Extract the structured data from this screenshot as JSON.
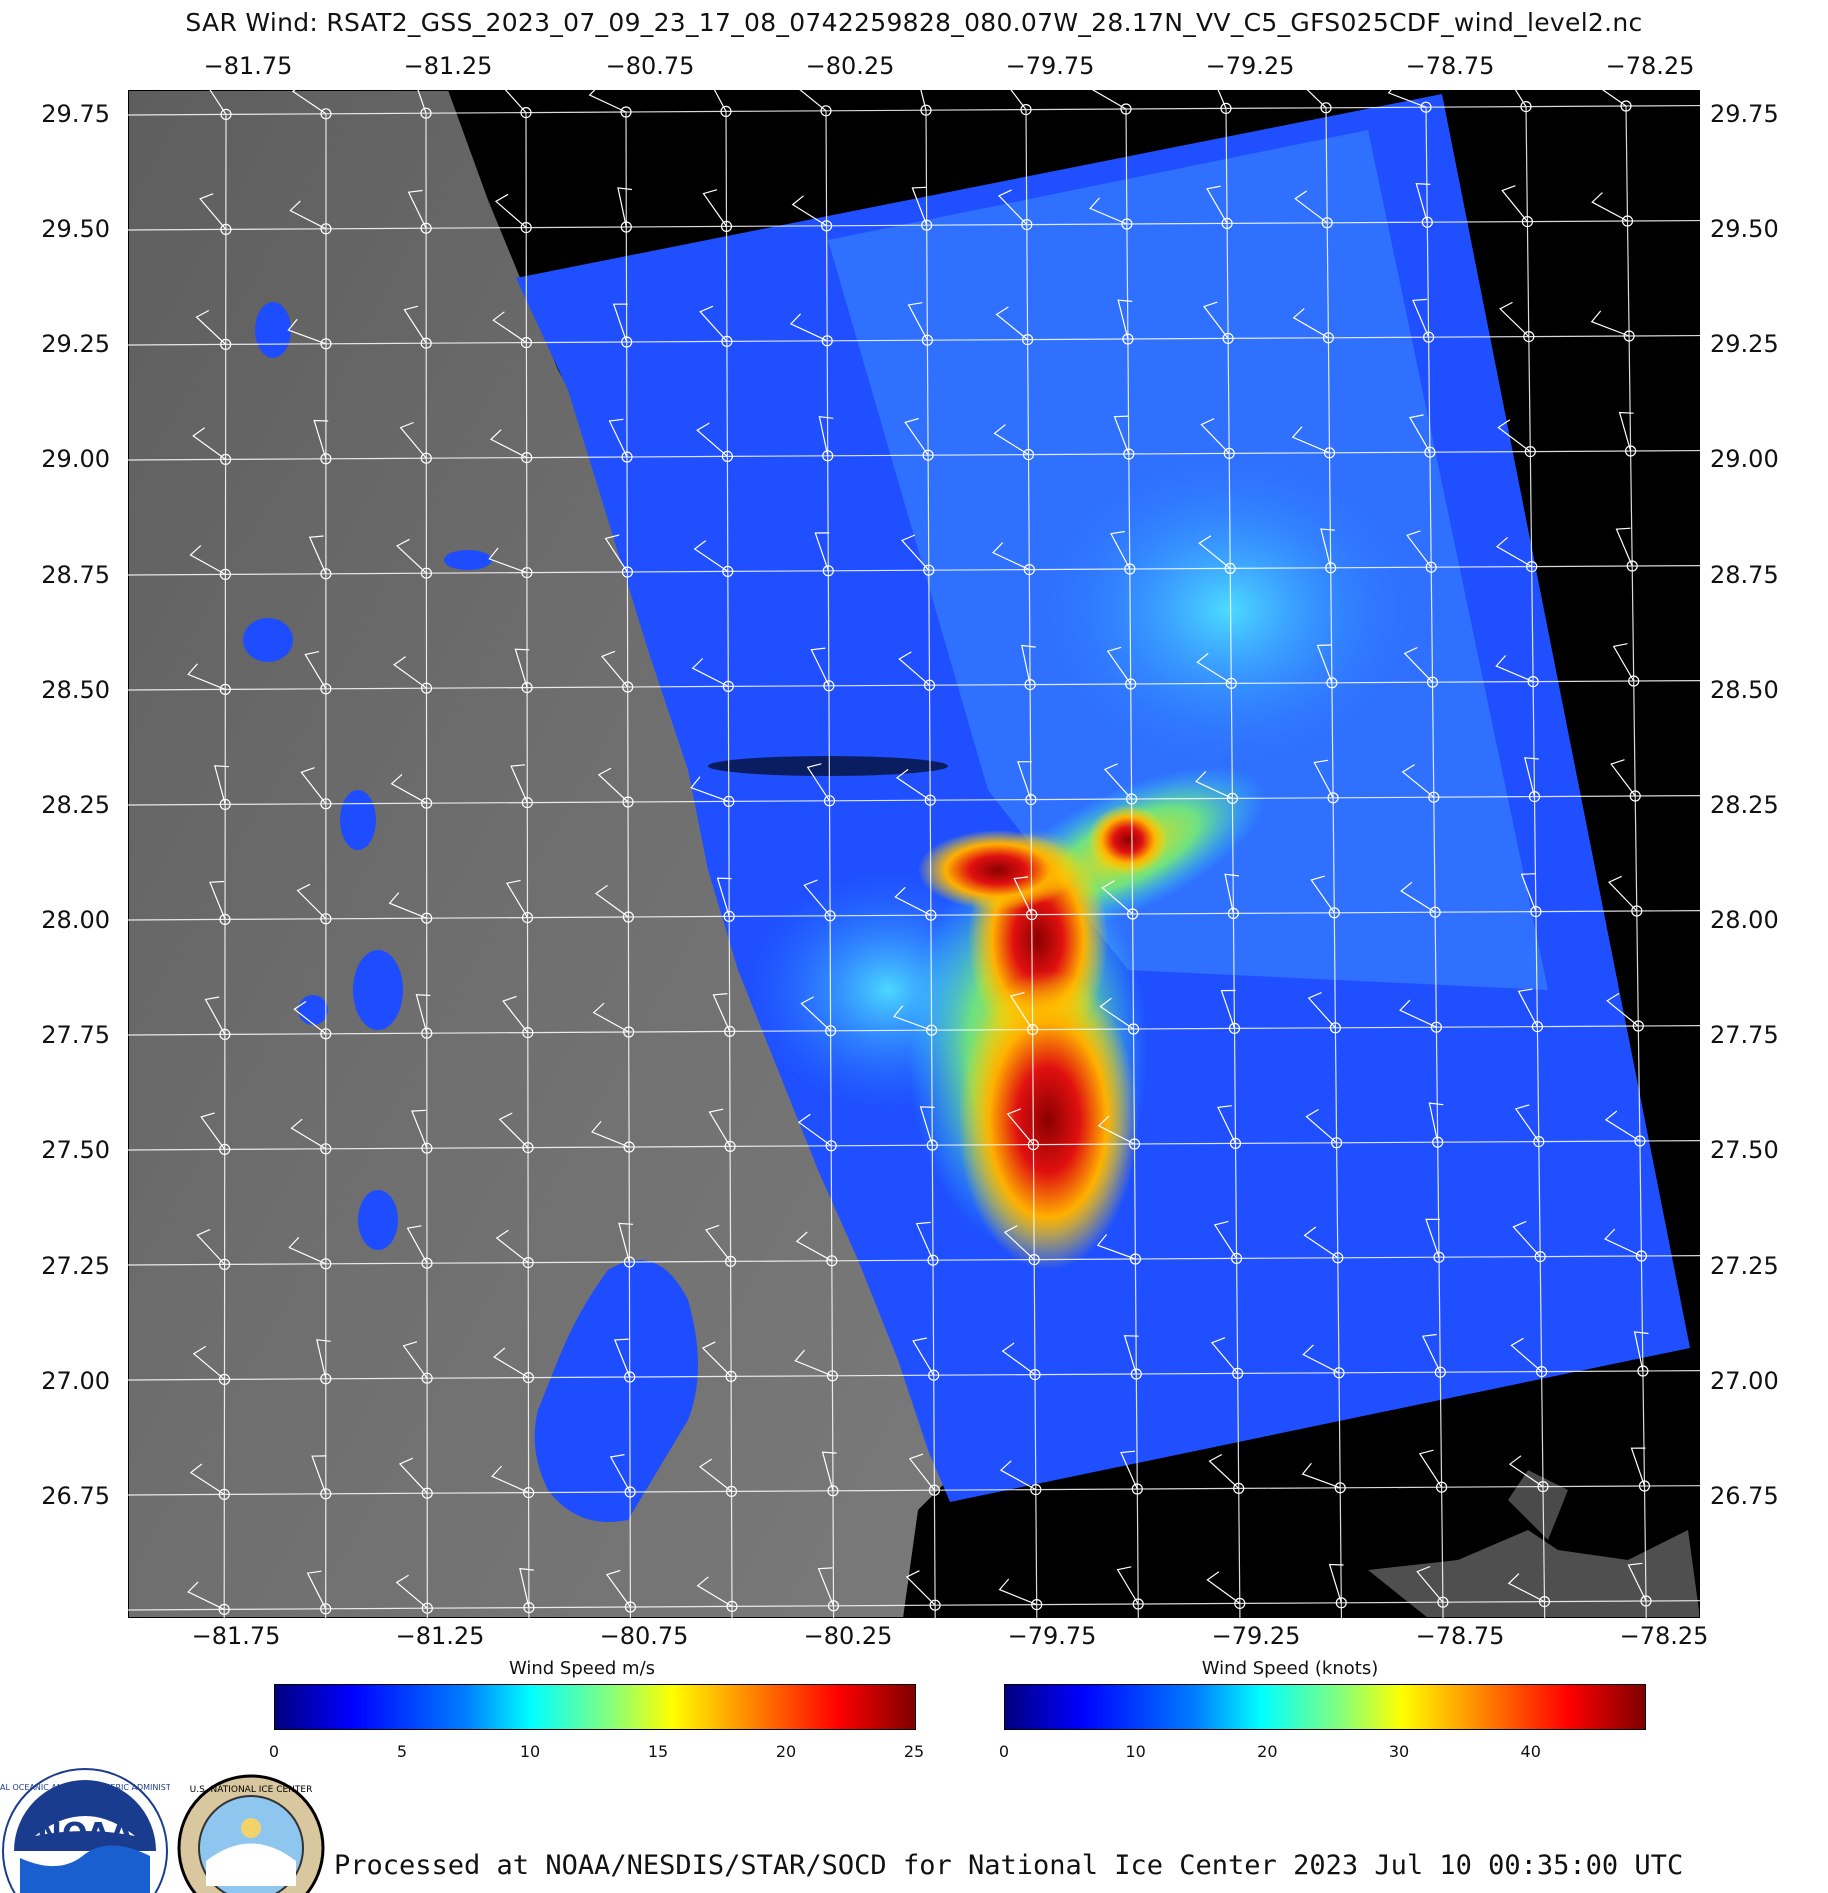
{
  "title": "SAR Wind: RSAT2_GSS_2023_07_09_23_17_08_0742259828_080.07W_28.17N_VV_C5_GFS025CDF_wind_level2.nc",
  "axes": {
    "lon_top": [
      "−81.75",
      "−81.25",
      "−80.75",
      "−80.25",
      "−79.75",
      "−79.25",
      "−78.75",
      "−78.25"
    ],
    "lon_bottom": [
      "−81.75",
      "−81.25",
      "−80.75",
      "−80.25",
      "−79.75",
      "−79.25",
      "−78.75",
      "−78.25"
    ],
    "lat_left": [
      "29.75",
      "29.50",
      "29.25",
      "29.00",
      "28.75",
      "28.50",
      "28.25",
      "28.00",
      "27.75",
      "27.50",
      "27.25",
      "27.00",
      "26.75"
    ],
    "lat_right": [
      "29.75",
      "29.50",
      "29.25",
      "29.00",
      "28.75",
      "28.50",
      "28.25",
      "28.00",
      "27.75",
      "27.50",
      "27.25",
      "27.00",
      "26.75"
    ]
  },
  "colorbar_ms": {
    "title": "Wind Speed m/s",
    "ticks": [
      "0",
      "5",
      "10",
      "15",
      "20",
      "25"
    ],
    "max": 25
  },
  "colorbar_knots": {
    "title": "Wind Speed (knots)",
    "ticks": [
      "0",
      "10",
      "20",
      "30",
      "40"
    ],
    "max": 48.6
  },
  "footer": "Processed at NOAA/NESDIS/STAR/SOCD for National Ice Center 2023 Jul 10 00:35:00 UTC",
  "logos": {
    "noaa_text": "NOAA",
    "noaa_ring": "NATIONAL OCEANIC AND ATMOSPHERIC ADMINISTRATION",
    "nic_ring": "U.S. NATIONAL ICE CENTER"
  },
  "colors": {
    "land": "#6b6b6b",
    "ocean_base": "#1e4cff",
    "background": "#000000",
    "grid": "#ffffff"
  }
}
